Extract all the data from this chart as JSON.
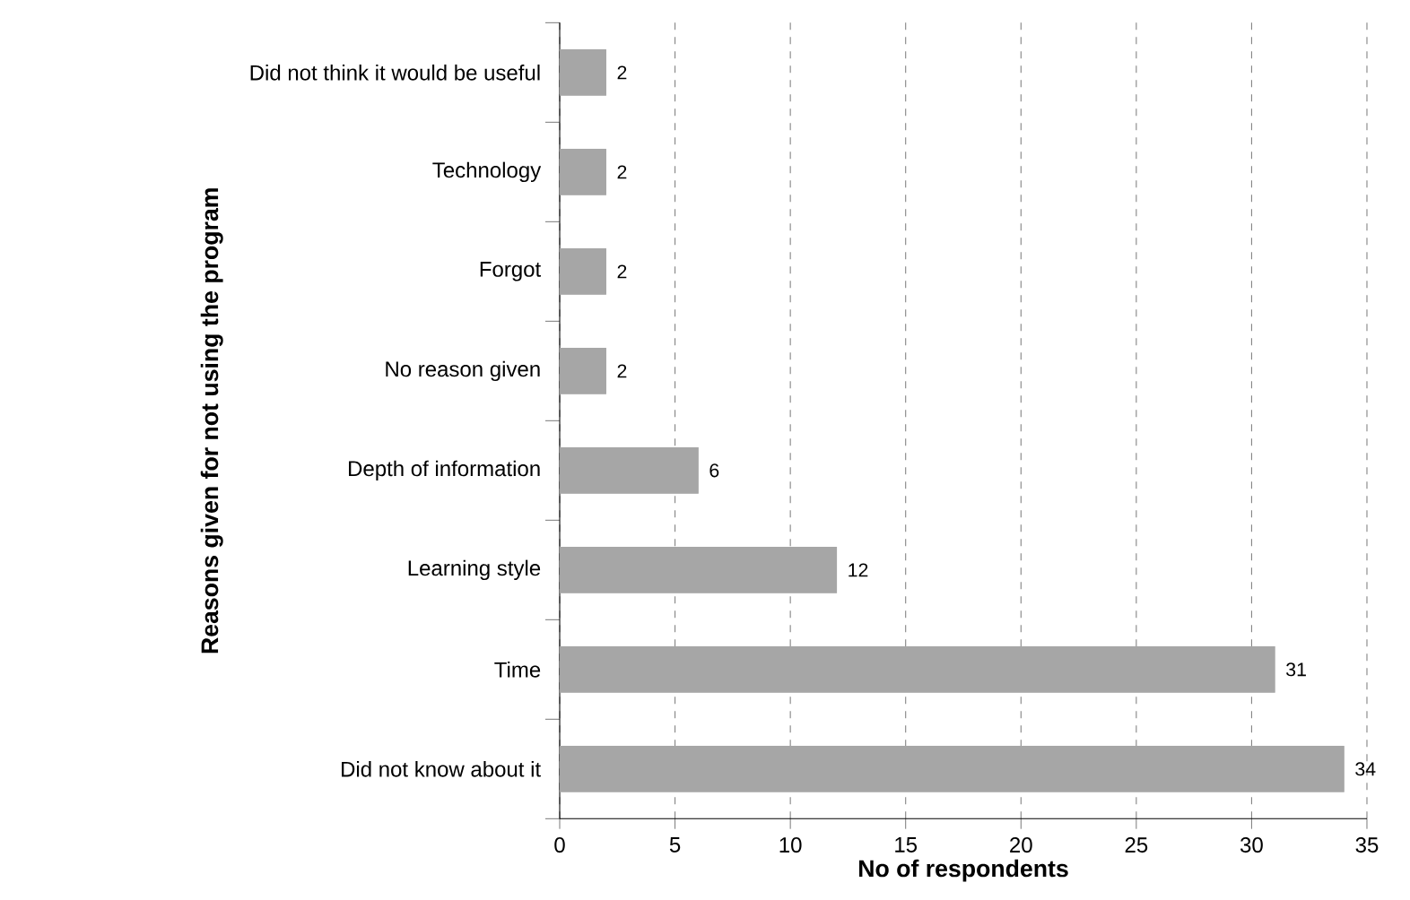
{
  "chart_data": {
    "type": "bar",
    "orientation": "horizontal",
    "xlabel": "No of respondents",
    "ylabel": "Reasons given for not using the program",
    "categories": [
      "Did not think it would be useful",
      "Technology",
      "Forgot",
      "No reason given",
      "Depth of information",
      "Learning style",
      "Time",
      "Did not know about it"
    ],
    "values": [
      2,
      2,
      2,
      2,
      6,
      12,
      31,
      34
    ],
    "color": "#a6a6a6",
    "xlim": [
      0,
      35
    ],
    "xticks": [
      0,
      5,
      10,
      15,
      20,
      25,
      30,
      35
    ],
    "grid": "x",
    "data_labels": true
  }
}
